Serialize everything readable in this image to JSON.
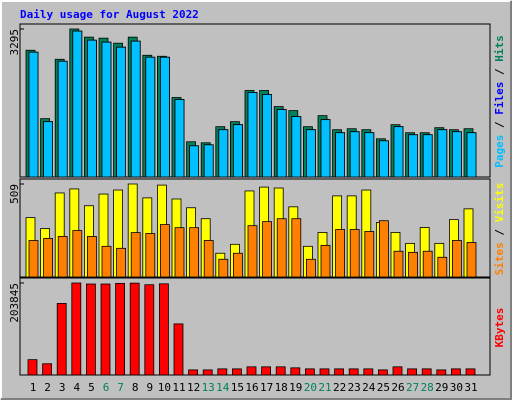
{
  "chart_data": {
    "type": "bar",
    "title": "Daily usage for August 2022",
    "categories": [
      "1",
      "2",
      "3",
      "4",
      "5",
      "6",
      "7",
      "8",
      "9",
      "10",
      "11",
      "12",
      "13",
      "14",
      "15",
      "16",
      "17",
      "18",
      "19",
      "20",
      "21",
      "22",
      "23",
      "24",
      "25",
      "26",
      "27",
      "28",
      "29",
      "30",
      "31"
    ],
    "label_color": "#000000",
    "weekend_color": "#00805c",
    "weekends": [
      "6",
      "7",
      "13",
      "14",
      "20",
      "21",
      "27",
      "28"
    ],
    "panels": [
      {
        "ylim": [
          0,
          3295
        ],
        "yticks": [
          3295
        ],
        "series": [
          {
            "name": "Hits",
            "color": "#00805c",
            "values": [
              2822,
              1299,
              2621,
              3295,
              3114,
              3091,
              2979,
              3114,
              2710,
              2688,
              1770,
              784,
              762,
              1120,
              1232,
              1926,
              1926,
              1568,
              1478,
              1120,
              1366,
              1053,
              1075,
              1053,
              851,
              1165,
              986,
              986,
              1098,
              1053,
              1075
            ]
          },
          {
            "name": "Files",
            "color": "#0000ff",
            "values": [
              2778,
              1232,
              2576,
              3248,
              3046,
              3002,
              2890,
              3024,
              2666,
              2666,
              1725,
              694,
              717,
              1053,
              1165,
              1882,
              1837,
              1501,
              1344,
              1053,
              1277,
              986,
              1008,
              986,
              806,
              1120,
              941,
              941,
              1053,
              1008,
              986
            ]
          },
          {
            "name": "Pages",
            "color": "#00c0ff",
            "values": [
              2778,
              1232,
              2576,
              3248,
              3046,
              3002,
              2890,
              3024,
              2666,
              2666,
              1725,
              694,
              717,
              1053,
              1165,
              1882,
              1837,
              1501,
              1344,
              1053,
              1277,
              986,
              1008,
              986,
              806,
              1120,
              941,
              941,
              1053,
              1008,
              986
            ]
          }
        ]
      },
      {
        "ylim": [
          0,
          509
        ],
        "yticks": [
          509
        ],
        "series": [
          {
            "name": "Visits",
            "color": "#ffff00",
            "values": [
              325,
              265,
              460,
              482,
              390,
              454,
              476,
              509,
              433,
              503,
              427,
              379,
              319,
              130,
              179,
              471,
              492,
              487,
              384,
              168,
              244,
              444,
              444,
              476,
              298,
              244,
              184,
              271,
              184,
              314,
              373
            ]
          },
          {
            "name": "Sites",
            "color": "#ff8000",
            "values": [
              200,
              211,
              222,
              254,
              222,
              168,
              157,
              243,
              238,
              287,
              270,
              270,
              200,
              97,
              130,
              281,
              303,
              319,
              319,
              97,
              173,
              260,
              260,
              249,
              308,
              141,
              135,
              141,
              108,
              200,
              189
            ]
          }
        ]
      },
      {
        "ylim": [
          0,
          203845
        ],
        "yticks": [
          203845
        ],
        "series": [
          {
            "name": "KBytes",
            "color": "#ff0000",
            "values": [
              33977,
              24917,
              158546,
              203845,
              201600,
              201600,
              203000,
              203500,
              200000,
              202000,
              113250,
              11300,
              11300,
              13600,
              13600,
              18100,
              18100,
              18100,
              15900,
              13600,
              13600,
              13600,
              13600,
              13600,
              11300,
              18100,
              13600,
              13600,
              11300,
              13600,
              13600
            ]
          }
        ]
      }
    ]
  }
}
